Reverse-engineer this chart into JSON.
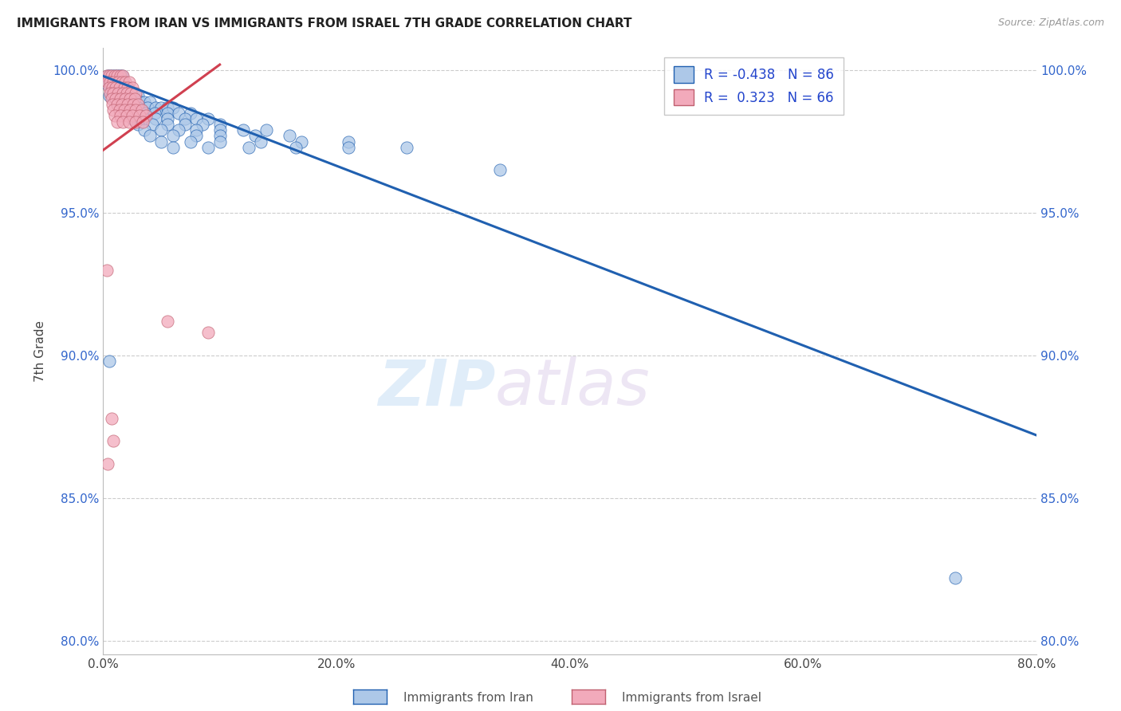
{
  "title": "IMMIGRANTS FROM IRAN VS IMMIGRANTS FROM ISRAEL 7TH GRADE CORRELATION CHART",
  "source": "Source: ZipAtlas.com",
  "ylabel": "7th Grade",
  "xlim": [
    0.0,
    0.8
  ],
  "ylim": [
    0.795,
    1.008
  ],
  "xtick_labels": [
    "0.0%",
    "",
    "20.0%",
    "",
    "40.0%",
    "",
    "60.0%",
    "",
    "80.0%"
  ],
  "xtick_vals": [
    0.0,
    0.1,
    0.2,
    0.3,
    0.4,
    0.5,
    0.6,
    0.7,
    0.8
  ],
  "ytick_labels": [
    "80.0%",
    "85.0%",
    "90.0%",
    "95.0%",
    "100.0%"
  ],
  "ytick_vals": [
    0.8,
    0.85,
    0.9,
    0.95,
    1.0
  ],
  "legend_iran_text": "R = -0.438   N = 86",
  "legend_israel_text": "R =  0.323   N = 66",
  "color_iran": "#adc8e8",
  "color_israel": "#f2aabb",
  "line_color_iran": "#2060b0",
  "line_color_israel": "#d04050",
  "watermark_zip": "ZIP",
  "watermark_atlas": "atlas",
  "iran_line_x": [
    0.0,
    0.8
  ],
  "iran_line_y": [
    0.998,
    0.872
  ],
  "israel_line_x": [
    0.0,
    0.1
  ],
  "israel_line_y": [
    0.972,
    1.002
  ],
  "iran_points": [
    [
      0.004,
      0.998
    ],
    [
      0.006,
      0.998
    ],
    [
      0.008,
      0.998
    ],
    [
      0.01,
      0.998
    ],
    [
      0.012,
      0.998
    ],
    [
      0.014,
      0.998
    ],
    [
      0.016,
      0.998
    ],
    [
      0.018,
      0.995
    ],
    [
      0.004,
      0.995
    ],
    [
      0.006,
      0.995
    ],
    [
      0.009,
      0.995
    ],
    [
      0.011,
      0.993
    ],
    [
      0.013,
      0.993
    ],
    [
      0.015,
      0.993
    ],
    [
      0.02,
      0.993
    ],
    [
      0.022,
      0.993
    ],
    [
      0.005,
      0.991
    ],
    [
      0.007,
      0.991
    ],
    [
      0.01,
      0.991
    ],
    [
      0.016,
      0.991
    ],
    [
      0.018,
      0.991
    ],
    [
      0.024,
      0.991
    ],
    [
      0.026,
      0.991
    ],
    [
      0.028,
      0.991
    ],
    [
      0.03,
      0.991
    ],
    [
      0.012,
      0.989
    ],
    [
      0.017,
      0.989
    ],
    [
      0.02,
      0.989
    ],
    [
      0.025,
      0.989
    ],
    [
      0.032,
      0.989
    ],
    [
      0.035,
      0.989
    ],
    [
      0.04,
      0.989
    ],
    [
      0.015,
      0.987
    ],
    [
      0.022,
      0.987
    ],
    [
      0.03,
      0.987
    ],
    [
      0.038,
      0.987
    ],
    [
      0.045,
      0.987
    ],
    [
      0.05,
      0.987
    ],
    [
      0.055,
      0.987
    ],
    [
      0.06,
      0.987
    ],
    [
      0.02,
      0.985
    ],
    [
      0.028,
      0.985
    ],
    [
      0.036,
      0.985
    ],
    [
      0.044,
      0.985
    ],
    [
      0.055,
      0.985
    ],
    [
      0.065,
      0.985
    ],
    [
      0.075,
      0.985
    ],
    [
      0.025,
      0.983
    ],
    [
      0.035,
      0.983
    ],
    [
      0.045,
      0.983
    ],
    [
      0.055,
      0.983
    ],
    [
      0.07,
      0.983
    ],
    [
      0.08,
      0.983
    ],
    [
      0.09,
      0.983
    ],
    [
      0.03,
      0.981
    ],
    [
      0.042,
      0.981
    ],
    [
      0.055,
      0.981
    ],
    [
      0.07,
      0.981
    ],
    [
      0.085,
      0.981
    ],
    [
      0.1,
      0.981
    ],
    [
      0.035,
      0.979
    ],
    [
      0.05,
      0.979
    ],
    [
      0.065,
      0.979
    ],
    [
      0.08,
      0.979
    ],
    [
      0.1,
      0.979
    ],
    [
      0.12,
      0.979
    ],
    [
      0.14,
      0.979
    ],
    [
      0.04,
      0.977
    ],
    [
      0.06,
      0.977
    ],
    [
      0.08,
      0.977
    ],
    [
      0.1,
      0.977
    ],
    [
      0.13,
      0.977
    ],
    [
      0.16,
      0.977
    ],
    [
      0.05,
      0.975
    ],
    [
      0.075,
      0.975
    ],
    [
      0.1,
      0.975
    ],
    [
      0.135,
      0.975
    ],
    [
      0.17,
      0.975
    ],
    [
      0.21,
      0.975
    ],
    [
      0.06,
      0.973
    ],
    [
      0.09,
      0.973
    ],
    [
      0.125,
      0.973
    ],
    [
      0.165,
      0.973
    ],
    [
      0.21,
      0.973
    ],
    [
      0.26,
      0.973
    ],
    [
      0.34,
      0.965
    ],
    [
      0.005,
      0.898
    ],
    [
      0.73,
      0.822
    ]
  ],
  "israel_points": [
    [
      0.003,
      0.998
    ],
    [
      0.005,
      0.998
    ],
    [
      0.007,
      0.998
    ],
    [
      0.01,
      0.998
    ],
    [
      0.012,
      0.998
    ],
    [
      0.015,
      0.998
    ],
    [
      0.017,
      0.998
    ],
    [
      0.004,
      0.996
    ],
    [
      0.006,
      0.996
    ],
    [
      0.009,
      0.996
    ],
    [
      0.013,
      0.996
    ],
    [
      0.016,
      0.996
    ],
    [
      0.019,
      0.996
    ],
    [
      0.022,
      0.996
    ],
    [
      0.005,
      0.994
    ],
    [
      0.008,
      0.994
    ],
    [
      0.011,
      0.994
    ],
    [
      0.014,
      0.994
    ],
    [
      0.018,
      0.994
    ],
    [
      0.021,
      0.994
    ],
    [
      0.025,
      0.994
    ],
    [
      0.006,
      0.992
    ],
    [
      0.009,
      0.992
    ],
    [
      0.013,
      0.992
    ],
    [
      0.017,
      0.992
    ],
    [
      0.02,
      0.992
    ],
    [
      0.024,
      0.992
    ],
    [
      0.028,
      0.992
    ],
    [
      0.007,
      0.99
    ],
    [
      0.011,
      0.99
    ],
    [
      0.015,
      0.99
    ],
    [
      0.019,
      0.99
    ],
    [
      0.023,
      0.99
    ],
    [
      0.027,
      0.99
    ],
    [
      0.008,
      0.988
    ],
    [
      0.012,
      0.988
    ],
    [
      0.016,
      0.988
    ],
    [
      0.021,
      0.988
    ],
    [
      0.026,
      0.988
    ],
    [
      0.03,
      0.988
    ],
    [
      0.009,
      0.986
    ],
    [
      0.014,
      0.986
    ],
    [
      0.018,
      0.986
    ],
    [
      0.023,
      0.986
    ],
    [
      0.028,
      0.986
    ],
    [
      0.033,
      0.986
    ],
    [
      0.01,
      0.984
    ],
    [
      0.015,
      0.984
    ],
    [
      0.02,
      0.984
    ],
    [
      0.025,
      0.984
    ],
    [
      0.031,
      0.984
    ],
    [
      0.037,
      0.984
    ],
    [
      0.012,
      0.982
    ],
    [
      0.017,
      0.982
    ],
    [
      0.022,
      0.982
    ],
    [
      0.028,
      0.982
    ],
    [
      0.034,
      0.982
    ],
    [
      0.003,
      0.93
    ],
    [
      0.007,
      0.878
    ],
    [
      0.009,
      0.87
    ],
    [
      0.004,
      0.862
    ],
    [
      0.055,
      0.912
    ],
    [
      0.09,
      0.908
    ]
  ]
}
